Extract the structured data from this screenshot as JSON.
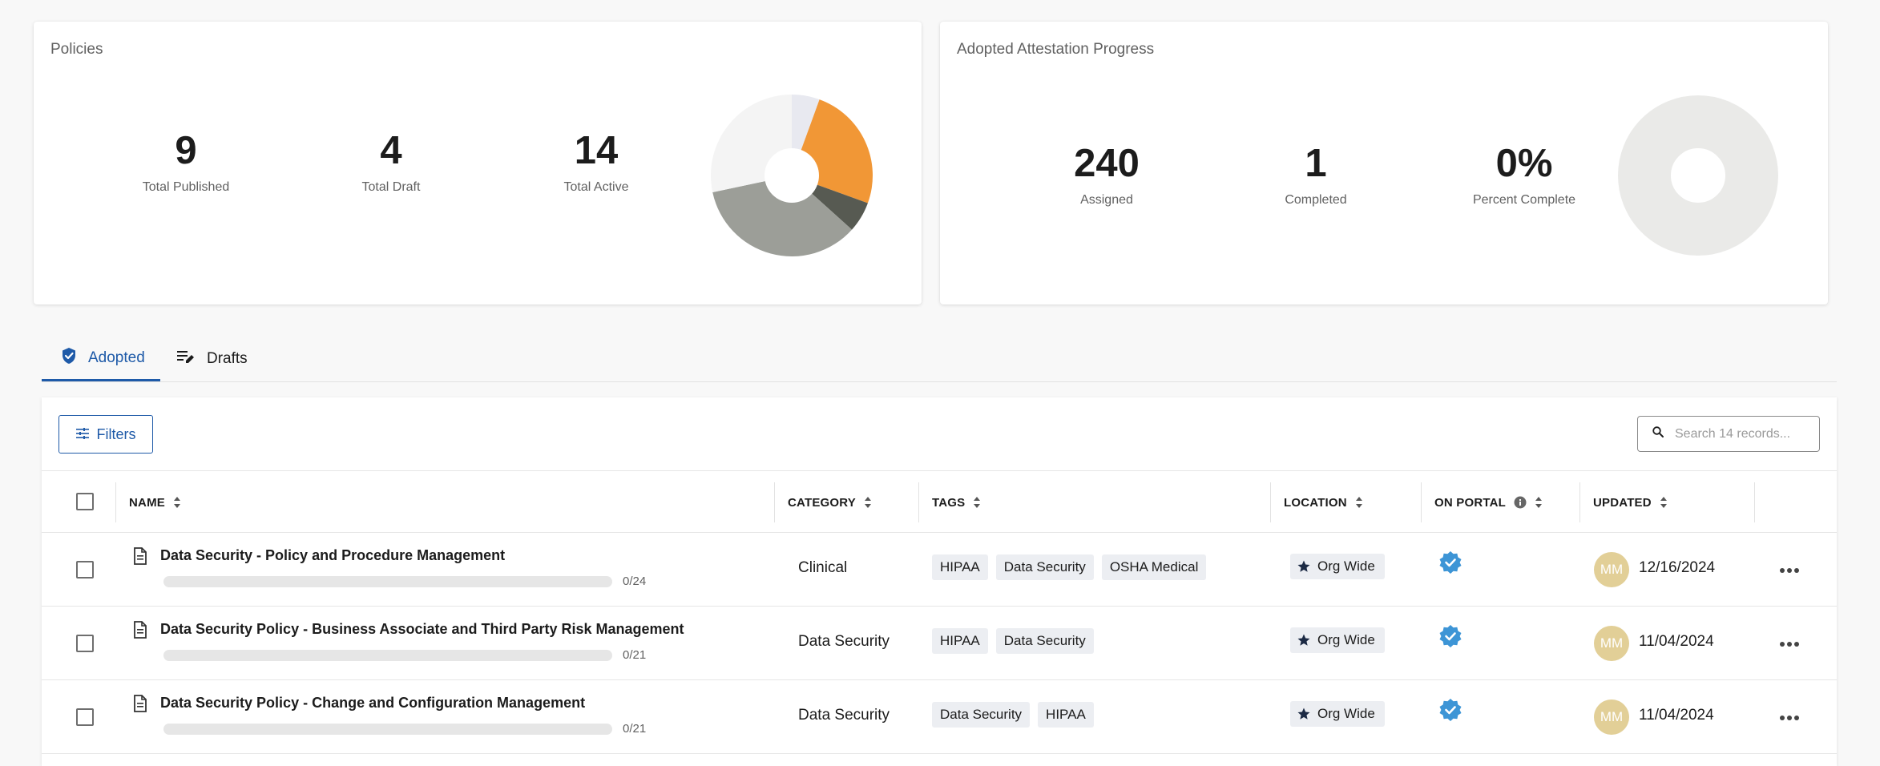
{
  "policies_card": {
    "title": "Policies",
    "stats": [
      {
        "value": "9",
        "label": "Total Published"
      },
      {
        "value": "4",
        "label": "Total Draft"
      },
      {
        "value": "14",
        "label": "Total Active"
      }
    ],
    "pie_colors": [
      "#f19736",
      "#575a52",
      "#9c9e98",
      "#f4f4f4",
      "#e8e9f0"
    ]
  },
  "attestation_card": {
    "title": "Adopted Attestation Progress",
    "stats": [
      {
        "value": "240",
        "label": "Assigned"
      },
      {
        "value": "1",
        "label": "Completed"
      },
      {
        "value": "0%",
        "label": "Percent Complete"
      }
    ],
    "donut_color": "#eaeae8"
  },
  "tabs": [
    {
      "label": "Adopted",
      "active": true
    },
    {
      "label": "Drafts",
      "active": false
    }
  ],
  "toolbar": {
    "filters_label": "Filters",
    "search_placeholder": "Search 14 records..."
  },
  "table": {
    "columns": [
      "NAME",
      "CATEGORY",
      "TAGS",
      "LOCATION",
      "ON PORTAL",
      "UPDATED"
    ],
    "rows": [
      {
        "name": "Data Security - Policy and Procedure Management",
        "progress_text": "0/24",
        "progress_fraction": 0,
        "category": "Clinical",
        "tags": [
          "HIPAA",
          "Data Security",
          "OSHA Medical"
        ],
        "location": "Org Wide",
        "avatar": "MM",
        "updated": "12/16/2024"
      },
      {
        "name": "Data Security Policy - Business Associate and Third Party Risk Management",
        "progress_text": "0/21",
        "progress_fraction": 0,
        "category": "Data Security",
        "tags": [
          "HIPAA",
          "Data Security"
        ],
        "location": "Org Wide",
        "avatar": "MM",
        "updated": "11/04/2024"
      },
      {
        "name": "Data Security Policy - Change and Configuration Management",
        "progress_text": "0/21",
        "progress_fraction": 0,
        "category": "Data Security",
        "tags": [
          "Data Security",
          "HIPAA"
        ],
        "location": "Org Wide",
        "avatar": "MM",
        "updated": "11/04/2024"
      }
    ]
  },
  "colors": {
    "accent": "#1e5aa8",
    "portal_check": "#3d95d6",
    "avatar_bg": "#e2cf97"
  }
}
